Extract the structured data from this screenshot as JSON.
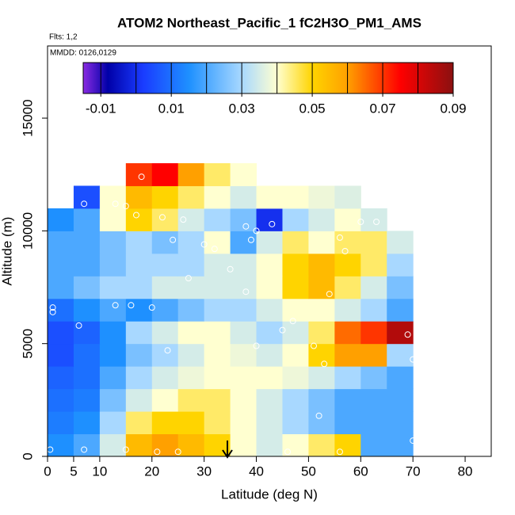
{
  "chart_data": {
    "type": "heatmap",
    "title": "ATOM2 Northeast_Pacific_1 fC2H3O_PM1_AMS",
    "subtitle": "Flts: 1,2",
    "annotation": "MMDD: 0126,0129",
    "x_label": "Latitude (deg N)",
    "y_label": "Altitude (m)",
    "xlim": [
      0,
      85
    ],
    "ylim": [
      0,
      18200
    ],
    "xticks": [
      0,
      5,
      10,
      20,
      30,
      40,
      50,
      60,
      70,
      80
    ],
    "yticks": [
      0,
      5000,
      10000,
      15000
    ],
    "x_edges": [
      0,
      5,
      10,
      15,
      20,
      25,
      30,
      35,
      40,
      45,
      50,
      55,
      60,
      65,
      70,
      75
    ],
    "y_edges": [
      0,
      1000,
      2000,
      3000,
      4000,
      5000,
      6000,
      7000,
      8000,
      9000,
      10000,
      11000,
      12000,
      13000
    ],
    "values": [
      [
        0.015,
        0.02,
        0.035,
        0.055,
        0.06,
        0.055,
        0.05,
        0.04,
        0.035,
        0.04,
        0.045,
        0.05,
        0.02,
        0.02,
        null
      ],
      [
        0.012,
        0.015,
        0.03,
        0.045,
        0.05,
        0.05,
        0.045,
        0.04,
        0.035,
        0.03,
        0.025,
        0.02,
        0.02,
        0.02,
        null
      ],
      [
        0.01,
        0.012,
        0.025,
        0.035,
        0.04,
        0.045,
        0.045,
        0.04,
        0.035,
        0.03,
        0.025,
        0.02,
        0.02,
        0.02,
        null
      ],
      [
        0.008,
        0.01,
        0.02,
        0.03,
        0.035,
        0.038,
        0.04,
        0.04,
        0.04,
        0.038,
        0.035,
        0.03,
        0.025,
        0.02,
        null
      ],
      [
        0.005,
        0.01,
        0.015,
        0.025,
        0.03,
        0.035,
        0.04,
        0.038,
        0.035,
        0.04,
        0.05,
        0.06,
        0.06,
        0.03,
        null
      ],
      [
        0.005,
        0.008,
        0.015,
        0.03,
        0.035,
        0.04,
        0.04,
        0.035,
        0.03,
        0.035,
        0.045,
        0.065,
        0.07,
        0.085,
        null
      ],
      [
        0.01,
        0.015,
        0.02,
        0.015,
        0.02,
        0.025,
        0.03,
        0.03,
        0.035,
        0.04,
        0.04,
        0.035,
        0.03,
        0.02,
        null
      ],
      [
        0.02,
        0.025,
        0.03,
        0.03,
        0.035,
        0.035,
        0.035,
        0.035,
        0.04,
        0.05,
        0.055,
        0.045,
        0.035,
        0.025,
        null
      ],
      [
        0.02,
        0.02,
        0.025,
        0.03,
        0.03,
        0.03,
        0.035,
        0.035,
        0.04,
        0.05,
        0.055,
        0.05,
        0.045,
        0.03,
        null
      ],
      [
        0.02,
        0.02,
        0.025,
        0.03,
        0.025,
        0.03,
        0.04,
        0.02,
        0.035,
        0.045,
        0.04,
        0.045,
        0.045,
        0.035,
        null
      ],
      [
        0.015,
        0.02,
        0.04,
        0.05,
        0.045,
        0.035,
        0.03,
        0.025,
        0.0,
        0.03,
        0.035,
        0.04,
        0.035,
        null,
        null
      ],
      [
        null,
        0.005,
        0.04,
        0.055,
        0.05,
        0.045,
        0.04,
        0.035,
        0.04,
        0.04,
        0.038,
        0.036,
        null,
        null,
        null
      ],
      [
        null,
        null,
        null,
        0.07,
        0.075,
        0.06,
        0.045,
        0.04,
        null,
        null,
        null,
        null,
        null,
        null,
        null
      ]
    ],
    "points": {
      "x": [
        0.5,
        7,
        15,
        21,
        25,
        46,
        56,
        70,
        52,
        53,
        51,
        40,
        23,
        6,
        70,
        69,
        45,
        47,
        1,
        1,
        13,
        16,
        20,
        38,
        27,
        54,
        35,
        30,
        32,
        24,
        39,
        40,
        38,
        57,
        56,
        63,
        60,
        43,
        17,
        22,
        26,
        4,
        7,
        13,
        15,
        18
      ],
      "y": [
        300,
        300,
        300,
        200,
        200,
        200,
        200,
        700,
        1800,
        4100,
        4900,
        4900,
        4700,
        5800,
        4300,
        5400,
        5600,
        6000,
        6400,
        6600,
        6700,
        6700,
        6600,
        7300,
        7900,
        7200,
        8300,
        9400,
        9200,
        9600,
        9600,
        10000,
        10200,
        9100,
        9700,
        10400,
        10400,
        10300,
        10700,
        10600,
        10500,
        11200,
        11200,
        11200,
        11100,
        12400
      ]
    },
    "colorbar": {
      "range": [
        -0.015,
        0.09
      ],
      "ticks": [
        -0.01,
        0.01,
        0.03,
        0.05,
        0.07,
        0.09
      ],
      "breaks": [
        -0.01,
        0,
        0.01,
        0.02,
        0.03,
        0.04,
        0.05,
        0.06,
        0.07,
        0.08
      ],
      "colorscale": [
        {
          "value": -0.015,
          "color": "#8a2be2"
        },
        {
          "value": -0.008,
          "color": "#0000a8"
        },
        {
          "value": 0.002,
          "color": "#1a3cff"
        },
        {
          "value": 0.015,
          "color": "#1e90ff"
        },
        {
          "value": 0.03,
          "color": "#a8d8ff"
        },
        {
          "value": 0.04,
          "color": "#ffffd0"
        },
        {
          "value": 0.05,
          "color": "#ffd400"
        },
        {
          "value": 0.06,
          "color": "#ffa000"
        },
        {
          "value": 0.075,
          "color": "#ff0000"
        },
        {
          "value": 0.09,
          "color": "#8b1010"
        }
      ]
    }
  }
}
